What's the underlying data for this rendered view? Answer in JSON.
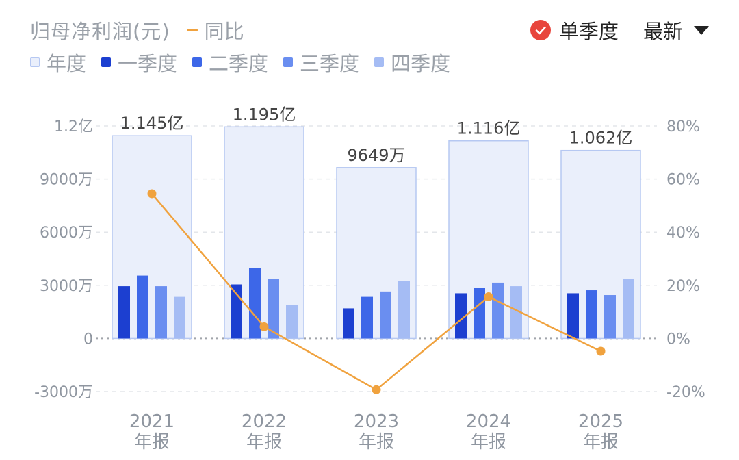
{
  "header": {
    "title": "归母净利润(元)",
    "yoy_legend": "同比",
    "single_quarter": "单季度",
    "latest": "最新"
  },
  "legend": [
    "年度",
    "一季度",
    "二季度",
    "三季度",
    "四季度"
  ],
  "colors": {
    "annual_fill": "#eaeffb",
    "annual_stroke": "#b6c8f2",
    "q1": "#1c3fd0",
    "q2": "#3d67e8",
    "q3": "#6a8ef0",
    "q4": "#a5bcf4",
    "yoy": "#f0a23e",
    "check": "#e8453c",
    "grid": "#e3e6ea",
    "zero": "#a0a4aa"
  },
  "chart_data": {
    "type": "bar",
    "categories": [
      "2021\n年报",
      "2022\n年报",
      "2023\n年报",
      "2024\n年报",
      "2025\n年报"
    ],
    "series": [
      {
        "name": "年度",
        "values": [
          11450,
          11950,
          9649,
          11160,
          10620
        ],
        "labels": [
          "1.145亿",
          "1.195亿",
          "9649万",
          "1.116亿",
          "1.062亿"
        ]
      },
      {
        "name": "一季度",
        "values": [
          2950,
          3050,
          1700,
          2550,
          2550
        ]
      },
      {
        "name": "二季度",
        "values": [
          3550,
          3980,
          2350,
          2850,
          2720
        ]
      },
      {
        "name": "三季度",
        "values": [
          2950,
          3350,
          2650,
          3150,
          2450
        ]
      },
      {
        "name": "四季度",
        "values": [
          2350,
          1900,
          3250,
          2950,
          3350
        ]
      },
      {
        "name": "同比",
        "axis": "right",
        "values": [
          54.5,
          4.4,
          -19.3,
          15.7,
          -4.8
        ]
      }
    ],
    "left_axis": {
      "ticks": [
        12000,
        9000,
        6000,
        3000,
        0,
        -3000
      ],
      "tick_labels": [
        "1.2亿",
        "9000万",
        "6000万",
        "3000万",
        "0",
        "-3000万"
      ],
      "ylim": [
        -3000,
        12000
      ]
    },
    "right_axis": {
      "ticks": [
        80,
        60,
        40,
        20,
        0,
        -20
      ],
      "tick_labels": [
        "80%",
        "60%",
        "40%",
        "20%",
        "0%",
        "-20%"
      ],
      "ylim": [
        -20,
        80
      ]
    },
    "grid": true,
    "legend_position": "top-left"
  }
}
